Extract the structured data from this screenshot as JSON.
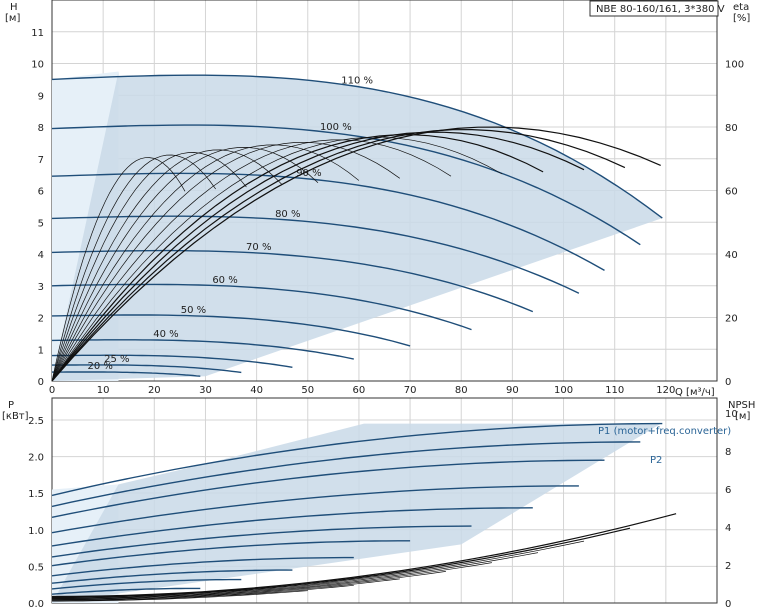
{
  "product_label": "NBE 80-160/161, 3*380 V",
  "chart_data": [
    {
      "type": "line",
      "name_id": "head-chart",
      "xlabel": "Q [м³/ч]",
      "ylabel": "H",
      "yunit": "[м]",
      "y2label": "eta",
      "y2unit": "[%]",
      "xlim": [
        0,
        130
      ],
      "ylim": [
        0,
        12
      ],
      "y2lim": [
        0,
        120
      ],
      "xticks": [
        0,
        10,
        20,
        30,
        40,
        50,
        60,
        70,
        80,
        90,
        100,
        110,
        120
      ],
      "yticks": [
        0,
        1,
        2,
        3,
        4,
        5,
        6,
        7,
        8,
        9,
        10,
        11
      ],
      "y2ticks": [
        0,
        20,
        40,
        60,
        80,
        100
      ],
      "grid": true,
      "speed_labels": [
        "110 %",
        "100 %",
        "90 %",
        "80 %",
        "70 %",
        "60 %",
        "50 %",
        "40 %",
        "25 %",
        "20 %"
      ],
      "series": [
        {
          "label": "110 %",
          "H0": 9.5,
          "Qmax": 119.3
        },
        {
          "label": "100 %",
          "H0": 7.95,
          "Qmax": 115.0
        },
        {
          "label": "90 %",
          "H0": 6.45,
          "Qmax": 108.0
        },
        {
          "label": "80 %",
          "H0": 5.12,
          "Qmax": 103.0
        },
        {
          "label": "70 %",
          "H0": 4.05,
          "Qmax": 94.0
        },
        {
          "label": "60 %",
          "H0": 3.0,
          "Qmax": 82.0
        },
        {
          "label": "50 %",
          "H0": 2.05,
          "Qmax": 70.0
        },
        {
          "label": "40 %",
          "H0": 1.28,
          "Qmax": 59.0
        },
        {
          "label": "",
          "H0": 0.8,
          "Qmax": 47.0
        },
        {
          "label": "25 %",
          "H0": 0.5,
          "Qmax": 37.0
        },
        {
          "label": "20 %",
          "H0": 0.28,
          "Qmax": 29.0
        }
      ],
      "efficiency_peak_percent": 80
    },
    {
      "type": "line",
      "name_id": "power-chart",
      "xlabel": "",
      "ylabel": "P",
      "yunit": "[кВт]",
      "y2label": "NPSH",
      "y2unit": "[м]",
      "xlim": [
        0,
        130
      ],
      "ylim": [
        0,
        2.8
      ],
      "y2lim": [
        0,
        10.8
      ],
      "yticks": [
        0.0,
        0.5,
        1.0,
        1.5,
        2.0,
        2.5
      ],
      "ytick_labels": [
        "0.0",
        "0.5",
        "1.0",
        "1.5",
        "2.0",
        "2.5"
      ],
      "y2ticks": [
        0,
        2,
        4,
        6,
        8,
        10
      ],
      "grid": true,
      "legend": {
        "p1": "P1 (motor+freq.converter)",
        "p2": "P2"
      },
      "p1_max_kw": 2.45,
      "npsh_max_m": 3.2
    }
  ]
}
